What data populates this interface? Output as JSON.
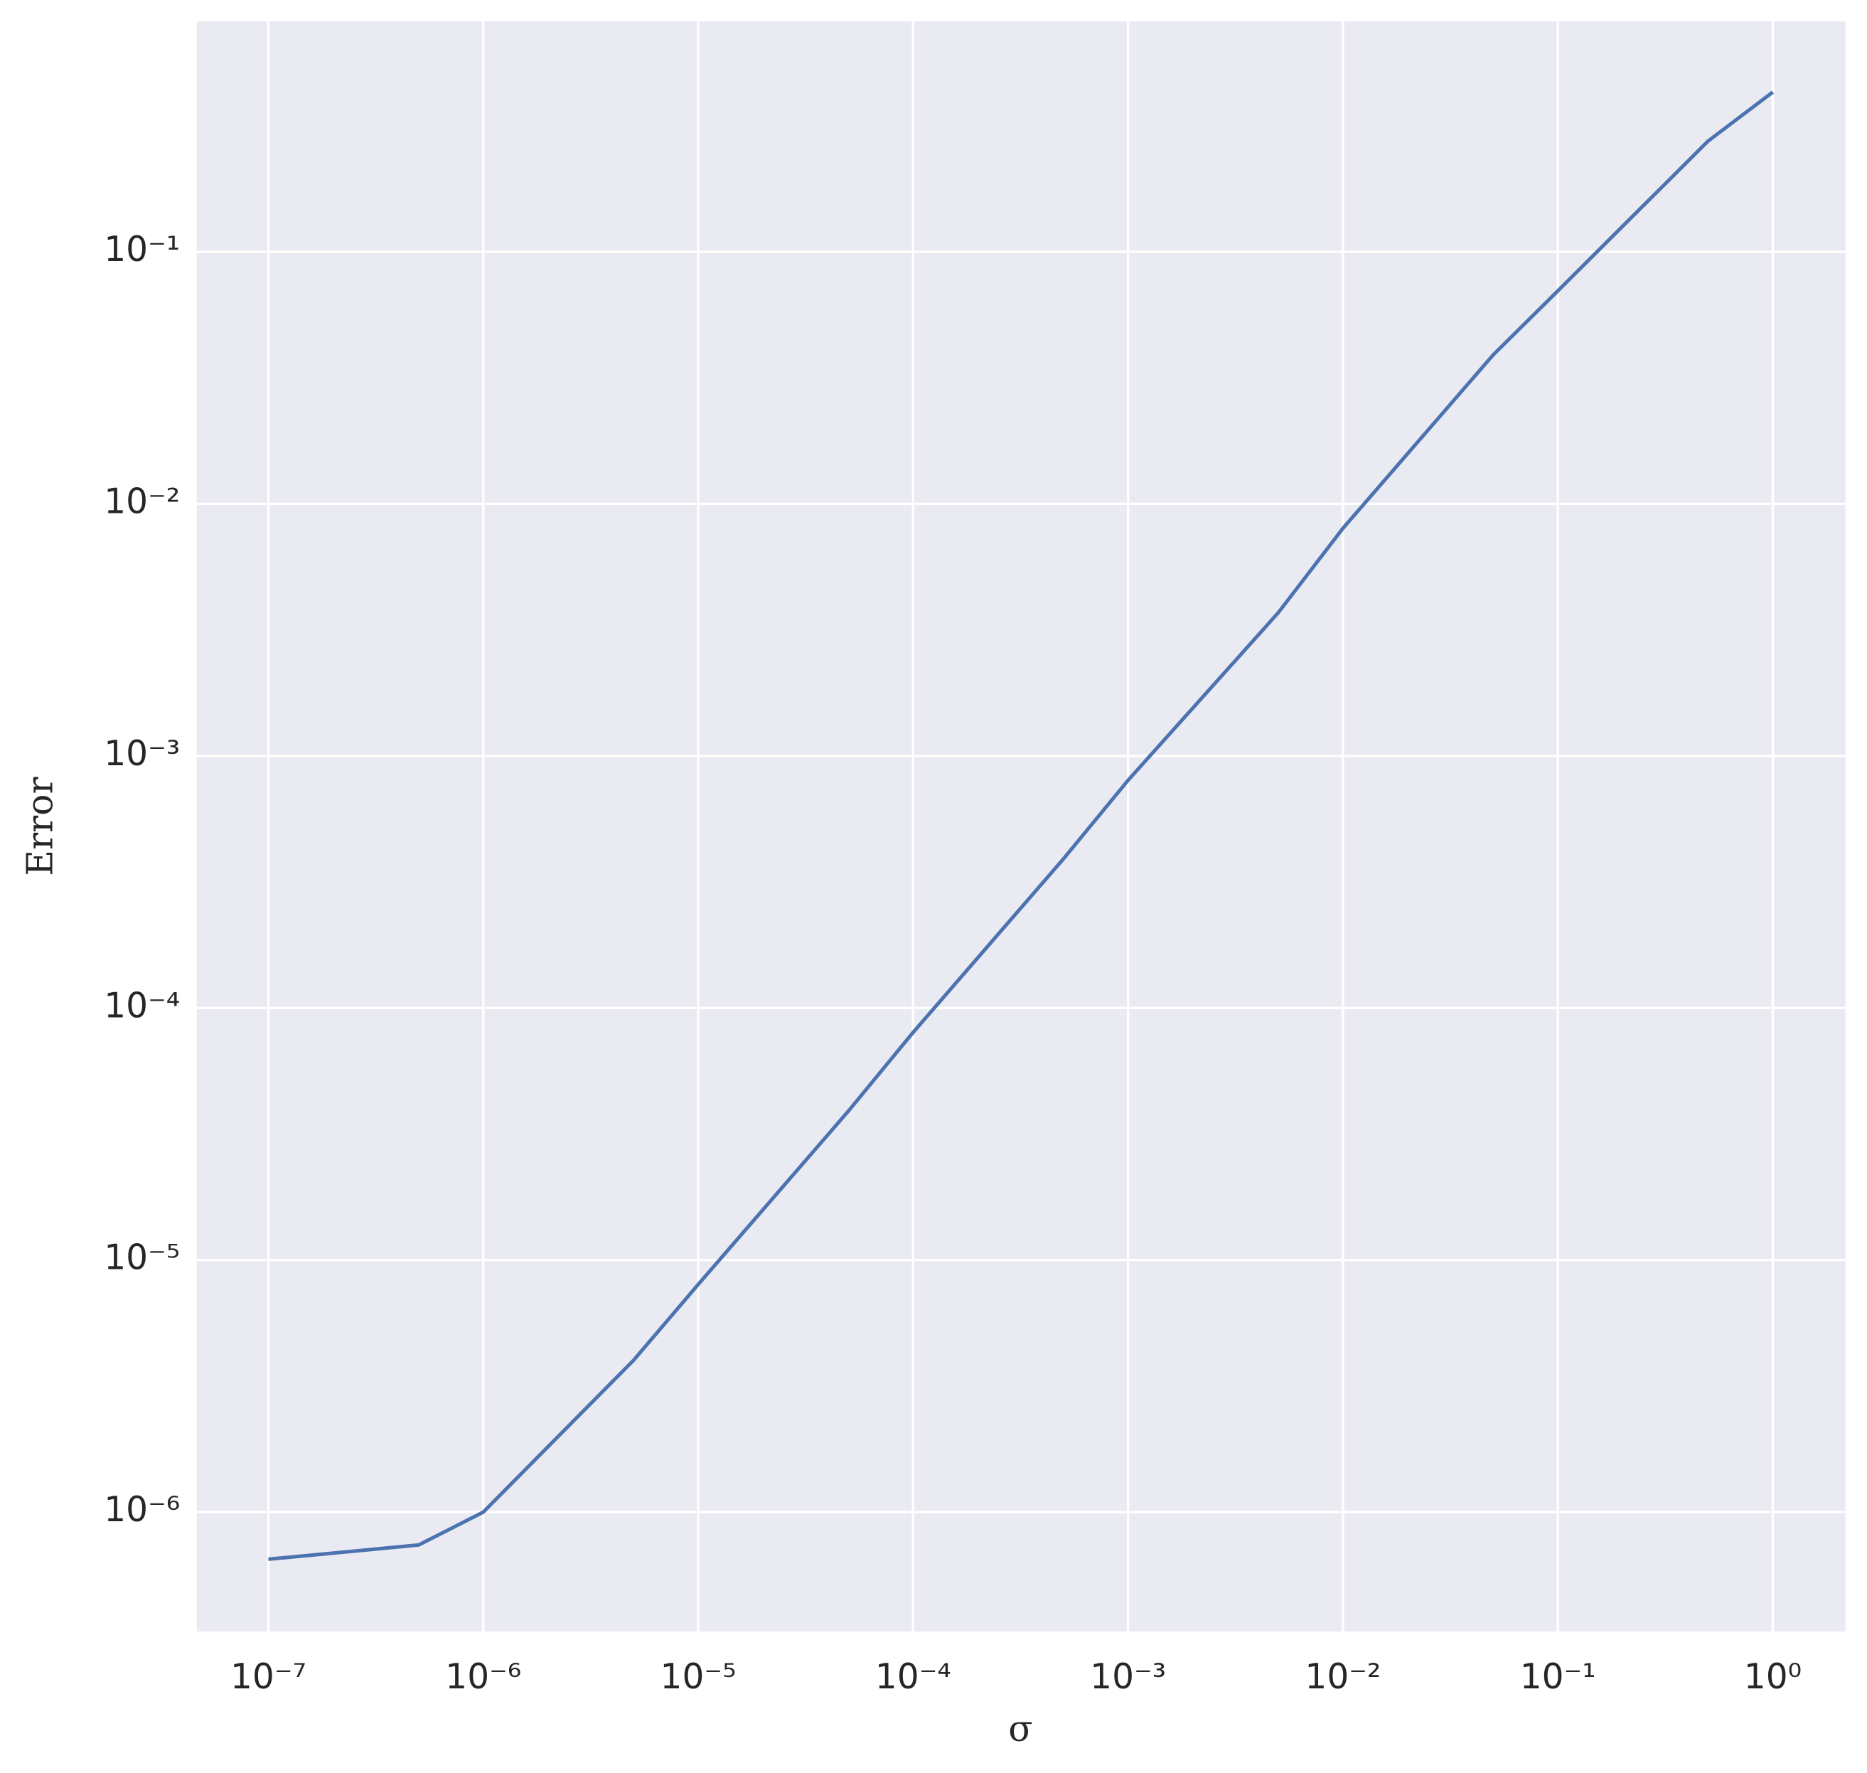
{
  "chart_data": {
    "type": "line",
    "x_label": "σ",
    "y_label": "Error",
    "x": [
      1e-07,
      5e-07,
      1e-06,
      5e-06,
      1e-05,
      5e-05,
      0.0001,
      0.0005,
      0.001,
      0.005,
      0.01,
      0.05,
      0.1,
      0.5,
      1
    ],
    "series": [
      {
        "name": null,
        "color": "#4c72b0",
        "values": [
          6.5e-07,
          7.4e-07,
          1e-06,
          4e-06,
          8e-06,
          3.9e-05,
          8e-05,
          0.00039,
          0.0008,
          0.0037,
          0.008,
          0.039,
          0.07,
          0.275,
          0.43
        ]
      }
    ],
    "xscale": "log",
    "yscale": "log",
    "xlim": [
      4.64e-08,
      2.18
    ],
    "ylim": [
      3.36e-07,
      0.82
    ],
    "xticks": [
      {
        "value": 1e-07,
        "label": "10⁻⁷"
      },
      {
        "value": 1e-06,
        "label": "10⁻⁶"
      },
      {
        "value": 1e-05,
        "label": "10⁻⁵"
      },
      {
        "value": 0.0001,
        "label": "10⁻⁴"
      },
      {
        "value": 0.001,
        "label": "10⁻³"
      },
      {
        "value": 0.01,
        "label": "10⁻²"
      },
      {
        "value": 0.1,
        "label": "10⁻¹"
      },
      {
        "value": 1,
        "label": "10⁰"
      }
    ],
    "yticks": [
      {
        "value": 1e-06,
        "label": "10⁻⁶"
      },
      {
        "value": 1e-05,
        "label": "10⁻⁵"
      },
      {
        "value": 0.0001,
        "label": "10⁻⁴"
      },
      {
        "value": 0.001,
        "label": "10⁻³"
      },
      {
        "value": 0.01,
        "label": "10⁻²"
      },
      {
        "value": 0.1,
        "label": "10⁻¹"
      }
    ],
    "grid": true,
    "background": "#eaeaf2",
    "grid_color": "#ffffff"
  }
}
